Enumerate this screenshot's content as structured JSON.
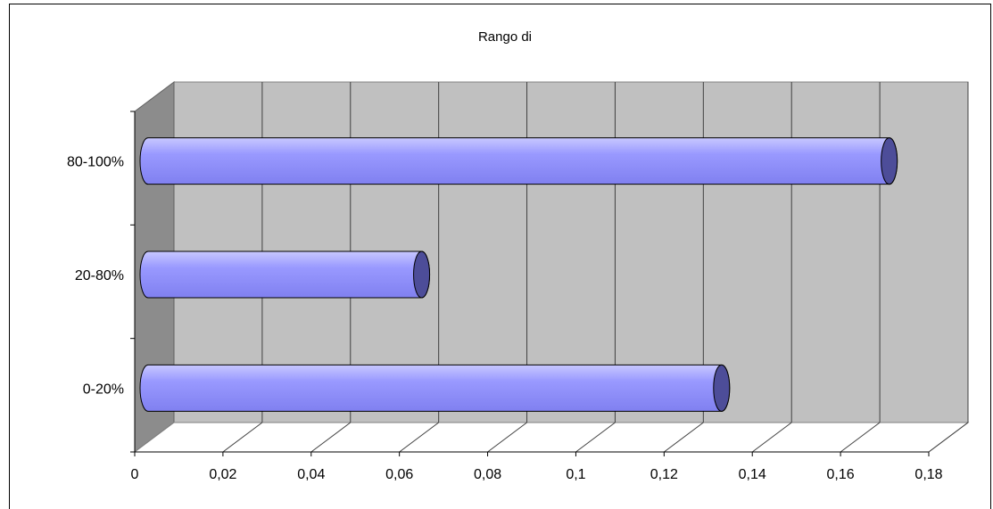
{
  "chart_data": {
    "type": "bar",
    "orientation": "horizontal",
    "style": "3d-cylinder",
    "title": "Rango di",
    "xlabel": "",
    "ylabel": "",
    "categories": [
      "0-20%",
      "20-80%",
      "80-100%"
    ],
    "values": [
      0.13,
      0.062,
      0.168
    ],
    "xlim": [
      0,
      0.18
    ],
    "x_ticks": [
      0,
      0.02,
      0.04,
      0.06,
      0.08,
      0.1,
      0.12,
      0.14,
      0.16,
      0.18
    ],
    "x_tick_labels": [
      "0",
      "0,02",
      "0,04",
      "0,06",
      "0,08",
      "0,1",
      "0,12",
      "0,14",
      "0,16",
      "0,18"
    ],
    "grid": true,
    "legend": "none",
    "colors": {
      "bar": "#9999ff",
      "bar_cap": "#4d4d99",
      "wall": "#c0c0c0",
      "side_wall": "#8c8c8c",
      "floor": "#ffffff",
      "gridline": "#404040"
    }
  }
}
